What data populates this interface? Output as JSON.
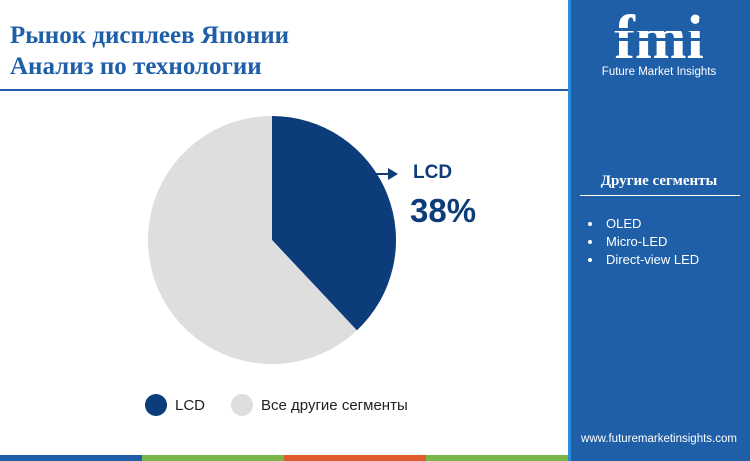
{
  "header": {
    "title_line1": "Рынок дисплеев Японии",
    "title_line2": "Анализ по технологии"
  },
  "colors": {
    "lcd": "#0d3c7a",
    "other": "#dedede",
    "bar": [
      "#1f5fa8",
      "#7ab648",
      "#e05a2b",
      "#7ab648"
    ]
  },
  "chart_data": {
    "type": "pie",
    "slices": [
      {
        "label": "LCD",
        "value": 38,
        "color": "#0d3c7a"
      },
      {
        "label": "Все другие сегменты",
        "value": 62,
        "color": "#dedede"
      }
    ],
    "callout": {
      "label": "LCD",
      "value_text": "38%"
    },
    "legend": {
      "placement": "bottom",
      "items": [
        {
          "label": "LCD",
          "color": "#0d3c7a"
        },
        {
          "label": "Все другие сегменты",
          "color": "#dedede"
        }
      ]
    }
  },
  "sidebar": {
    "logo_text": "fmi",
    "logo_subtitle": "Future Market Insights",
    "segments_title": "Другие сегменты",
    "segments": [
      "OLED",
      "Micro-LED",
      "Direct-view LED"
    ],
    "url": "www.futuremarketinsights.com"
  }
}
